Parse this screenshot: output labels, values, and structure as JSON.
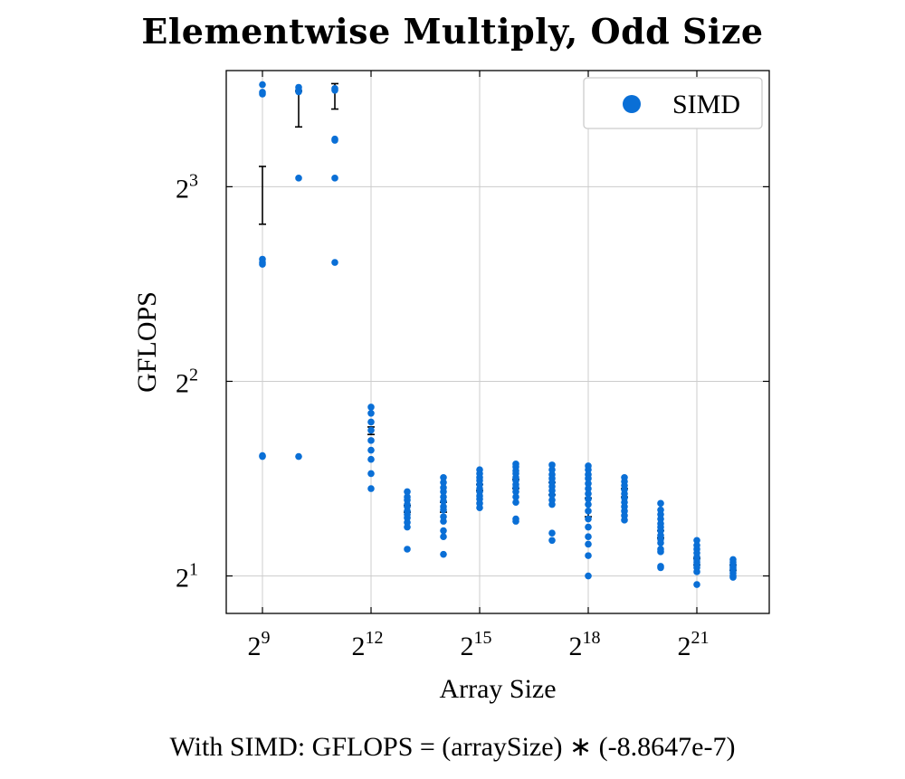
{
  "title": "Elementwise Multiply, Odd Size",
  "footnote": "With SIMD:  GFLOPS = (arraySize) ∗ (-8.8647e-7)",
  "colors": {
    "series": "#0a6fd6",
    "errorbar": "#000000",
    "grid": "#cccccc",
    "frame": "#000000"
  },
  "chart_data": {
    "type": "scatter",
    "title": "Elementwise Multiply, Odd Size",
    "xlabel": "Array Size",
    "ylabel": "GFLOPS",
    "x_scale": "log2",
    "y_scale": "log2",
    "xlim": [
      256.0,
      8388608.0
    ],
    "ylim": [
      1.75,
      12.1
    ],
    "x_ticks": [
      {
        "value": 512,
        "base": "2",
        "exp": "9"
      },
      {
        "value": 4096,
        "base": "2",
        "exp": "12"
      },
      {
        "value": 32768,
        "base": "2",
        "exp": "15"
      },
      {
        "value": 262144,
        "base": "2",
        "exp": "18"
      },
      {
        "value": 2097152,
        "base": "2",
        "exp": "21"
      }
    ],
    "y_ticks": [
      {
        "value": 2,
        "base": "2",
        "exp": "1"
      },
      {
        "value": 4,
        "base": "2",
        "exp": "2"
      },
      {
        "value": 8,
        "base": "2",
        "exp": "3"
      }
    ],
    "grid": true,
    "legend": {
      "position": "top-right",
      "entries": [
        "SIMD"
      ]
    },
    "series": [
      {
        "name": "SIMD",
        "points": [
          {
            "x": 512,
            "y": [
              11.51,
              11.2,
              11.13,
              6.18,
              6.11,
              6.07,
              3.07,
              3.06
            ]
          },
          {
            "x": 1024,
            "y": [
              11.4,
              11.28,
              11.22,
              8.25,
              3.06
            ]
          },
          {
            "x": 2048,
            "y": [
              11.35,
              11.28,
              9.48,
              9.44,
              8.25,
              6.11
            ]
          },
          {
            "x": 4096,
            "y": [
              3.65,
              3.57,
              3.46,
              3.36,
              3.24,
              3.13,
              3.03,
              2.88,
              2.73
            ]
          },
          {
            "x": 8192,
            "y": [
              2.7,
              2.65,
              2.62,
              2.58,
              2.56,
              2.52,
              2.49,
              2.46,
              2.42,
              2.38,
              2.2
            ]
          },
          {
            "x": 16384,
            "y": [
              2.84,
              2.79,
              2.74,
              2.7,
              2.65,
              2.61,
              2.56,
              2.53,
              2.47,
              2.43,
              2.35,
              2.3,
              2.16
            ]
          },
          {
            "x": 32768,
            "y": [
              2.92,
              2.88,
              2.84,
              2.81,
              2.77,
              2.73,
              2.7,
              2.66,
              2.63,
              2.59,
              2.55
            ]
          },
          {
            "x": 65536,
            "y": [
              2.98,
              2.95,
              2.91,
              2.88,
              2.84,
              2.81,
              2.77,
              2.74,
              2.7,
              2.65,
              2.6,
              2.45,
              2.43
            ]
          },
          {
            "x": 131072,
            "y": [
              2.97,
              2.92,
              2.87,
              2.83,
              2.79,
              2.75,
              2.71,
              2.67,
              2.62,
              2.58,
              2.33,
              2.27
            ]
          },
          {
            "x": 262144,
            "y": [
              2.96,
              2.92,
              2.87,
              2.83,
              2.78,
              2.73,
              2.68,
              2.63,
              2.58,
              2.52,
              2.45,
              2.38,
              2.3,
              2.24,
              2.15,
              2.0
            ]
          },
          {
            "x": 524288,
            "y": [
              2.84,
              2.8,
              2.76,
              2.72,
              2.68,
              2.64,
              2.6,
              2.56,
              2.52,
              2.48,
              2.44
            ]
          },
          {
            "x": 1048576,
            "y": [
              2.59,
              2.53,
              2.49,
              2.45,
              2.41,
              2.38,
              2.35,
              2.31,
              2.28,
              2.25,
              2.2,
              2.18,
              2.07,
              2.06
            ]
          },
          {
            "x": 2097152,
            "y": [
              2.27,
              2.23,
              2.2,
              2.17,
              2.14,
              2.12,
              2.1,
              2.08,
              2.06,
              2.03,
              1.94
            ]
          },
          {
            "x": 4194304,
            "y": [
              2.12,
              2.1,
              2.08,
              2.07,
              2.06,
              2.05,
              2.04,
              2.02,
              2.0,
              1.99
            ]
          }
        ],
        "error_bars": [
          {
            "x": 512,
            "low": 7.0,
            "high": 8.6
          },
          {
            "x": 1024,
            "low": 9.9,
            "high": 11.25
          },
          {
            "x": 2048,
            "low": 10.55,
            "high": 11.55
          },
          {
            "x": 4096,
            "low": 3.31,
            "high": 3.4
          },
          {
            "x": 8192,
            "low": 2.51,
            "high": 2.57
          },
          {
            "x": 16384,
            "low": 2.51,
            "high": 2.6
          },
          {
            "x": 32768,
            "low": 2.71,
            "high": 2.77
          },
          {
            "x": 65536,
            "low": 2.73,
            "high": 2.82
          },
          {
            "x": 131072,
            "low": 2.67,
            "high": 2.79
          },
          {
            "x": 262144,
            "low": 2.47,
            "high": 2.64
          },
          {
            "x": 524288,
            "low": 2.65,
            "high": 2.73
          },
          {
            "x": 1048576,
            "low": 2.29,
            "high": 2.35
          },
          {
            "x": 2097152,
            "low": 2.08,
            "high": 2.13
          },
          {
            "x": 4194304,
            "low": 2.04,
            "high": 2.08
          }
        ]
      }
    ]
  }
}
